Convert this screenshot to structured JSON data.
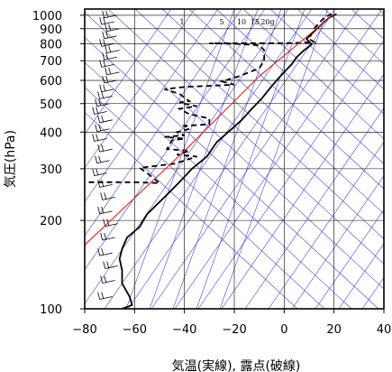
{
  "chart_data": {
    "type": "line",
    "title": "",
    "xlabel": "気温(実線), 露点(破線)",
    "ylabel": "気圧(hPa)",
    "xlim": [
      -80,
      40
    ],
    "ylim": [
      1050,
      100
    ],
    "y_scale": "log",
    "x_ticks": [
      -80,
      -60,
      -40,
      -20,
      0,
      20,
      40
    ],
    "x_tick_labels": [
      "−80",
      "−60",
      "−40",
      "−20",
      "0",
      "20",
      "40"
    ],
    "y_ticks": [
      100,
      200,
      300,
      400,
      500,
      600,
      700,
      800,
      900,
      1000
    ],
    "y_tick_labels": [
      "100",
      "200",
      "300",
      "400",
      "500",
      "600",
      "700",
      "800",
      "900",
      "1000"
    ],
    "grid": true,
    "mixing_ratio_labels": [
      "1",
      "5",
      "10",
      "15",
      "20g"
    ],
    "colors": {
      "temperature": "#000000",
      "dewpoint": "#000000",
      "reference_line": "#e02020",
      "diagonal_lines": "#4848d8",
      "grid": "#000000"
    },
    "series": [
      {
        "key": "temperature",
        "style": "solid",
        "points": [
          [
            -65,
            100
          ],
          [
            -61,
            103
          ],
          [
            -62,
            110
          ],
          [
            -65,
            122
          ],
          [
            -65,
            135
          ],
          [
            -66,
            148
          ],
          [
            -65,
            160
          ],
          [
            -63,
            175
          ],
          [
            -58,
            190
          ],
          [
            -55,
            210
          ],
          [
            -48,
            240
          ],
          [
            -42,
            270
          ],
          [
            -37,
            300
          ],
          [
            -31,
            330
          ],
          [
            -27,
            370
          ],
          [
            -21,
            410
          ],
          [
            -17,
            440
          ],
          [
            -13,
            480
          ],
          [
            -9,
            520
          ],
          [
            -6,
            560
          ],
          [
            -3,
            600
          ],
          [
            0,
            640
          ],
          [
            3,
            680
          ],
          [
            5,
            720
          ],
          [
            8,
            760
          ],
          [
            11,
            795
          ],
          [
            9,
            830
          ],
          [
            12,
            880
          ],
          [
            15,
            930
          ],
          [
            18,
            980
          ],
          [
            21,
            1010
          ]
        ]
      },
      {
        "key": "dewpoint",
        "style": "dashed",
        "points": [
          [
            -82,
            270
          ],
          [
            -60,
            270
          ],
          [
            -50,
            268
          ],
          [
            -55,
            290
          ],
          [
            -58,
            302
          ],
          [
            -44,
            312
          ],
          [
            -40,
            320
          ],
          [
            -35,
            330
          ],
          [
            -43,
            335
          ],
          [
            -38,
            345
          ],
          [
            -47,
            350
          ],
          [
            -45,
            375
          ],
          [
            -40,
            380
          ],
          [
            -48,
            385
          ],
          [
            -40,
            390
          ],
          [
            -43,
            400
          ],
          [
            -38,
            410
          ],
          [
            -40,
            420
          ],
          [
            -30,
            425
          ],
          [
            -30,
            445
          ],
          [
            -38,
            460
          ],
          [
            -42,
            480
          ],
          [
            -35,
            490
          ],
          [
            -40,
            500
          ],
          [
            -42,
            505
          ],
          [
            -38,
            510
          ],
          [
            -42,
            540
          ],
          [
            -48,
            560
          ],
          [
            -40,
            570
          ],
          [
            -20,
            580
          ],
          [
            -25,
            595
          ],
          [
            -18,
            620
          ],
          [
            -10,
            660
          ],
          [
            -8,
            700
          ],
          [
            -8,
            760
          ],
          [
            -10,
            790
          ],
          [
            -20,
            800
          ],
          [
            -30,
            802
          ],
          [
            0,
            803
          ],
          [
            5,
            805
          ],
          [
            12,
            810
          ],
          [
            10,
            830
          ],
          [
            12,
            900
          ],
          [
            16,
            980
          ],
          [
            19,
            1010
          ]
        ]
      },
      {
        "key": "reference",
        "style": "red",
        "points": [
          [
            -80,
            165
          ],
          [
            -40,
            345
          ],
          [
            -10,
            620
          ],
          [
            20,
            1010
          ]
        ]
      }
    ]
  }
}
